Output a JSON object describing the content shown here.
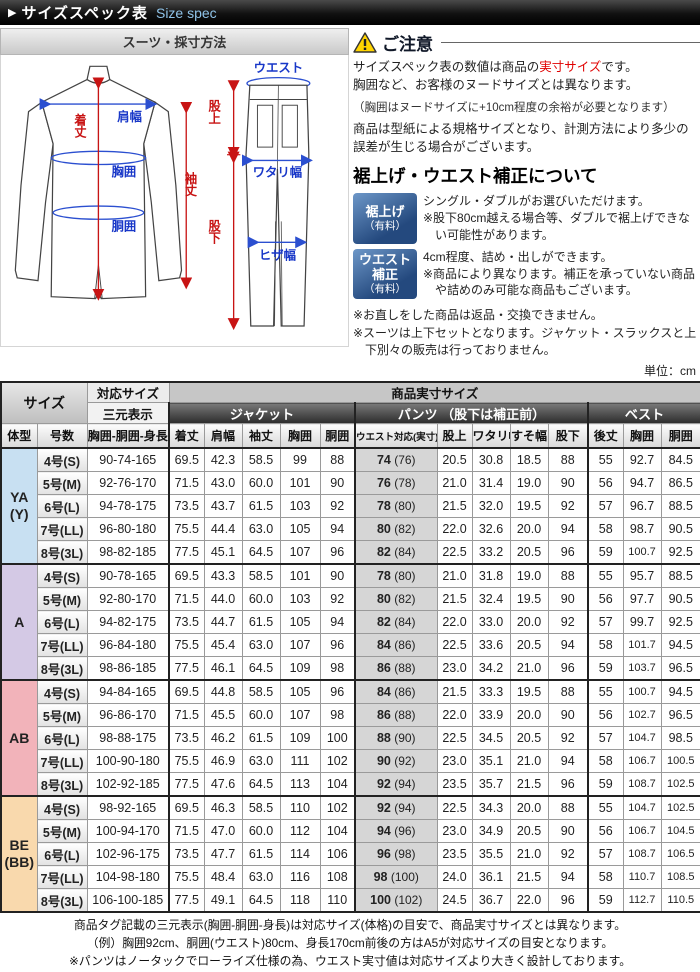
{
  "title_bar": {
    "arrow": "▶",
    "title": "サイズスペック表",
    "subtitle": "Size spec"
  },
  "measure": {
    "section_title": "スーツ・採寸方法",
    "jacket": {
      "shoulder": "肩幅",
      "length": "着丈",
      "chest": "胸囲",
      "waist": "胴囲",
      "sleeve": "袖丈"
    },
    "pants": {
      "waist": "ウエスト",
      "rise": "股上",
      "thigh": "ワタリ幅",
      "inseam": "股下",
      "knee": "ヒザ幅"
    }
  },
  "notice": {
    "title": "ご注意",
    "p1_pre": "サイズスペック表の数値は商品の",
    "p1_em": "実寸サイズ",
    "p1_post": "です。",
    "p1b": "胸囲など、お客様のヌードサイズとは異なります。",
    "p2": "（胸囲はヌードサイズに+10cm程度の余裕が必要となります）",
    "p3": "商品は型紙による規格サイズとなり、計測方法により多少の誤差が生じる場合がございます。"
  },
  "alteration": {
    "title": "裾上げ・ウエスト補正について",
    "items": [
      {
        "badge_main": "裾上げ",
        "badge_sub": "（有料）",
        "line1": "シングル・ダブルがお選びいただけます。",
        "line2": "※股下80cm越える場合等、ダブルで裾上げできない可能性があります。"
      },
      {
        "badge_main": "ウエスト補正",
        "badge_sub": "（有料）",
        "line1": "4cm程度、詰め・出しができます。",
        "line2": "※商品により異なります。補正を承っていない商品や詰めのみ可能な商品もございます。"
      }
    ],
    "notes": [
      "※お直しをした商品は返品・交換できません。",
      "※スーツは上下セットとなります。ジャケット・スラックスと上下別々の販売は行っておりません。"
    ]
  },
  "unit_label": "単位：cm",
  "table": {
    "h1": {
      "taiou": "対応サイズ",
      "jissun": "商品実寸サイズ"
    },
    "h2": {
      "size": "サイズ",
      "sangen": "三元表示",
      "jacket": "ジャケット",
      "pants": "パンツ （股下は補正前）",
      "vest": "ベスト"
    },
    "h3": [
      "体型",
      "号数",
      "胸囲-胴囲-身長",
      "着丈",
      "肩幅",
      "袖丈",
      "胸囲",
      "胴囲",
      "ウエスト対応(実寸)",
      "股上",
      "ワタリ幅",
      "すそ幅",
      "股下",
      "後丈",
      "胸囲",
      "胴囲"
    ],
    "sections": [
      {
        "body_type_lines": [
          "YA",
          "(Y)"
        ],
        "color": "#c8e0f2",
        "rows": [
          {
            "go": "4号(S)",
            "sangen": "90-74-165",
            "jk": [
              "69.5",
              "42.3",
              "58.5",
              "99",
              "88"
            ],
            "w": "74",
            "wr": "(76)",
            "pt": [
              "20.5",
              "30.8",
              "18.5",
              "88"
            ],
            "vt": [
              "55",
              "92.7",
              "84.5"
            ]
          },
          {
            "go": "5号(M)",
            "sangen": "92-76-170",
            "jk": [
              "71.5",
              "43.0",
              "60.0",
              "101",
              "90"
            ],
            "w": "76",
            "wr": "(78)",
            "pt": [
              "21.0",
              "31.4",
              "19.0",
              "90"
            ],
            "vt": [
              "56",
              "94.7",
              "86.5"
            ]
          },
          {
            "go": "6号(L)",
            "sangen": "94-78-175",
            "jk": [
              "73.5",
              "43.7",
              "61.5",
              "103",
              "92"
            ],
            "w": "78",
            "wr": "(80)",
            "pt": [
              "21.5",
              "32.0",
              "19.5",
              "92"
            ],
            "vt": [
              "57",
              "96.7",
              "88.5"
            ]
          },
          {
            "go": "7号(LL)",
            "sangen": "96-80-180",
            "jk": [
              "75.5",
              "44.4",
              "63.0",
              "105",
              "94"
            ],
            "w": "80",
            "wr": "(82)",
            "pt": [
              "22.0",
              "32.6",
              "20.0",
              "94"
            ],
            "vt": [
              "58",
              "98.7",
              "90.5"
            ]
          },
          {
            "go": "8号(3L)",
            "sangen": "98-82-185",
            "jk": [
              "77.5",
              "45.1",
              "64.5",
              "107",
              "96"
            ],
            "w": "82",
            "wr": "(84)",
            "pt": [
              "22.5",
              "33.2",
              "20.5",
              "96"
            ],
            "vt": [
              "59",
              "100.7",
              "92.5"
            ]
          }
        ]
      },
      {
        "body_type_lines": [
          "A"
        ],
        "color": "#d4c9e5",
        "rows": [
          {
            "go": "4号(S)",
            "sangen": "90-78-165",
            "jk": [
              "69.5",
              "43.3",
              "58.5",
              "101",
              "90"
            ],
            "w": "78",
            "wr": "(80)",
            "pt": [
              "21.0",
              "31.8",
              "19.0",
              "88"
            ],
            "vt": [
              "55",
              "95.7",
              "88.5"
            ]
          },
          {
            "go": "5号(M)",
            "sangen": "92-80-170",
            "jk": [
              "71.5",
              "44.0",
              "60.0",
              "103",
              "92"
            ],
            "w": "80",
            "wr": "(82)",
            "pt": [
              "21.5",
              "32.4",
              "19.5",
              "90"
            ],
            "vt": [
              "56",
              "97.7",
              "90.5"
            ]
          },
          {
            "go": "6号(L)",
            "sangen": "94-82-175",
            "jk": [
              "73.5",
              "44.7",
              "61.5",
              "105",
              "94"
            ],
            "w": "82",
            "wr": "(84)",
            "pt": [
              "22.0",
              "33.0",
              "20.0",
              "92"
            ],
            "vt": [
              "57",
              "99.7",
              "92.5"
            ]
          },
          {
            "go": "7号(LL)",
            "sangen": "96-84-180",
            "jk": [
              "75.5",
              "45.4",
              "63.0",
              "107",
              "96"
            ],
            "w": "84",
            "wr": "(86)",
            "pt": [
              "22.5",
              "33.6",
              "20.5",
              "94"
            ],
            "vt": [
              "58",
              "101.7",
              "94.5"
            ]
          },
          {
            "go": "8号(3L)",
            "sangen": "98-86-185",
            "jk": [
              "77.5",
              "46.1",
              "64.5",
              "109",
              "98"
            ],
            "w": "86",
            "wr": "(88)",
            "pt": [
              "23.0",
              "34.2",
              "21.0",
              "96"
            ],
            "vt": [
              "59",
              "103.7",
              "96.5"
            ]
          }
        ]
      },
      {
        "body_type_lines": [
          "AB"
        ],
        "color": "#f2b3ba",
        "rows": [
          {
            "go": "4号(S)",
            "sangen": "94-84-165",
            "jk": [
              "69.5",
              "44.8",
              "58.5",
              "105",
              "96"
            ],
            "w": "84",
            "wr": "(86)",
            "pt": [
              "21.5",
              "33.3",
              "19.5",
              "88"
            ],
            "vt": [
              "55",
              "100.7",
              "94.5"
            ]
          },
          {
            "go": "5号(M)",
            "sangen": "96-86-170",
            "jk": [
              "71.5",
              "45.5",
              "60.0",
              "107",
              "98"
            ],
            "w": "86",
            "wr": "(88)",
            "pt": [
              "22.0",
              "33.9",
              "20.0",
              "90"
            ],
            "vt": [
              "56",
              "102.7",
              "96.5"
            ]
          },
          {
            "go": "6号(L)",
            "sangen": "98-88-175",
            "jk": [
              "73.5",
              "46.2",
              "61.5",
              "109",
              "100"
            ],
            "w": "88",
            "wr": "(90)",
            "pt": [
              "22.5",
              "34.5",
              "20.5",
              "92"
            ],
            "vt": [
              "57",
              "104.7",
              "98.5"
            ]
          },
          {
            "go": "7号(LL)",
            "sangen": "100-90-180",
            "jk": [
              "75.5",
              "46.9",
              "63.0",
              "111",
              "102"
            ],
            "w": "90",
            "wr": "(92)",
            "pt": [
              "23.0",
              "35.1",
              "21.0",
              "94"
            ],
            "vt": [
              "58",
              "106.7",
              "100.5"
            ]
          },
          {
            "go": "8号(3L)",
            "sangen": "102-92-185",
            "jk": [
              "77.5",
              "47.6",
              "64.5",
              "113",
              "104"
            ],
            "w": "92",
            "wr": "(94)",
            "pt": [
              "23.5",
              "35.7",
              "21.5",
              "96"
            ],
            "vt": [
              "59",
              "108.7",
              "102.5"
            ]
          }
        ]
      },
      {
        "body_type_lines": [
          "BE",
          "(BB)"
        ],
        "color": "#f9d9ad",
        "rows": [
          {
            "go": "4号(S)",
            "sangen": "98-92-165",
            "jk": [
              "69.5",
              "46.3",
              "58.5",
              "110",
              "102"
            ],
            "w": "92",
            "wr": "(94)",
            "pt": [
              "22.5",
              "34.3",
              "20.0",
              "88"
            ],
            "vt": [
              "55",
              "104.7",
              "102.5"
            ]
          },
          {
            "go": "5号(M)",
            "sangen": "100-94-170",
            "jk": [
              "71.5",
              "47.0",
              "60.0",
              "112",
              "104"
            ],
            "w": "94",
            "wr": "(96)",
            "pt": [
              "23.0",
              "34.9",
              "20.5",
              "90"
            ],
            "vt": [
              "56",
              "106.7",
              "104.5"
            ]
          },
          {
            "go": "6号(L)",
            "sangen": "102-96-175",
            "jk": [
              "73.5",
              "47.7",
              "61.5",
              "114",
              "106"
            ],
            "w": "96",
            "wr": "(98)",
            "pt": [
              "23.5",
              "35.5",
              "21.0",
              "92"
            ],
            "vt": [
              "57",
              "108.7",
              "106.5"
            ]
          },
          {
            "go": "7号(LL)",
            "sangen": "104-98-180",
            "jk": [
              "75.5",
              "48.4",
              "63.0",
              "116",
              "108"
            ],
            "w": "98",
            "wr": "(100)",
            "pt": [
              "24.0",
              "36.1",
              "21.5",
              "94"
            ],
            "vt": [
              "58",
              "110.7",
              "108.5"
            ]
          },
          {
            "go": "8号(3L)",
            "sangen": "106-100-185",
            "jk": [
              "77.5",
              "49.1",
              "64.5",
              "118",
              "110"
            ],
            "w": "100",
            "wr": "(102)",
            "pt": [
              "24.5",
              "36.7",
              "22.0",
              "96"
            ],
            "vt": [
              "59",
              "112.7",
              "110.5"
            ]
          }
        ]
      }
    ]
  },
  "footer": [
    "商品タグ記載の三元表示(胸囲-胴囲-身長)は対応サイズ(体格)の目安で、商品実寸サイズとは異なります。",
    "（例）胸囲92cm、胴囲(ウエスト)80cm、身長170cm前後の方はA5が対応サイズの目安となります。",
    "※パンツはノータックでローライズ仕様の為、ウエスト実寸値は対応サイズより大きく設計しております。"
  ]
}
